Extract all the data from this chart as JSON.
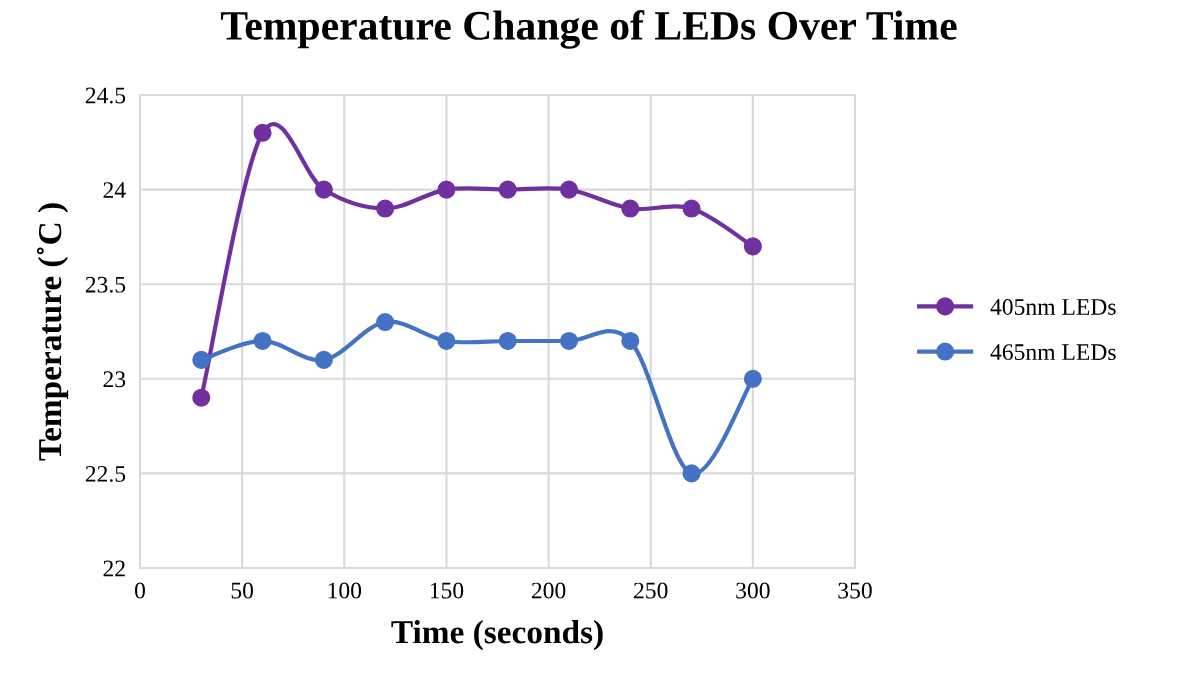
{
  "chart_data": {
    "type": "line",
    "title": "Temperature Change of LEDs Over Time",
    "xlabel": "Time (seconds)",
    "ylabel": "Temperature (˚C )",
    "x": [
      30,
      60,
      90,
      120,
      150,
      180,
      210,
      240,
      270,
      300
    ],
    "series": [
      {
        "name": "405nm LEDs",
        "color": "#7030a0",
        "values": [
          22.9,
          24.3,
          24.0,
          23.9,
          24.0,
          24.0,
          24.0,
          23.9,
          23.9,
          23.7
        ]
      },
      {
        "name": "465nm LEDs",
        "color": "#4472c4",
        "values": [
          23.1,
          23.2,
          23.1,
          23.3,
          23.2,
          23.2,
          23.2,
          23.2,
          22.5,
          23.0
        ]
      }
    ],
    "xlim": [
      0,
      350
    ],
    "xticks": [
      0,
      50,
      100,
      150,
      200,
      250,
      300,
      350
    ],
    "ylim": [
      22,
      24.5
    ],
    "yticks": [
      22,
      22.5,
      23,
      23.5,
      24,
      24.5
    ],
    "grid": true,
    "legend": "right",
    "marker": "circle",
    "line_style": "solid"
  }
}
